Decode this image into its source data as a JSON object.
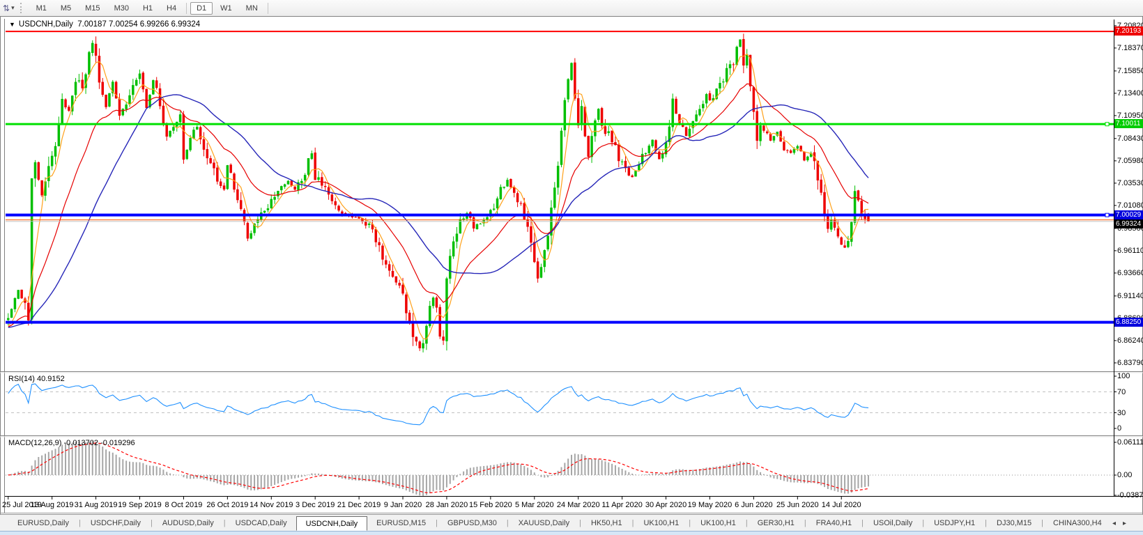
{
  "toolbar": {
    "chart_mode_icon": "⇅",
    "dropdown_icon": "▾",
    "timeframes": [
      "M1",
      "M5",
      "M15",
      "M30",
      "H1",
      "H4",
      "D1",
      "W1",
      "MN"
    ],
    "active": "D1"
  },
  "chart_header": {
    "collapse_icon": "▼",
    "symbol": "USDCNH,Daily",
    "ohlc": "7.00187 7.00254 6.99266 6.99324"
  },
  "price_axis": {
    "labels": [
      "7.20820",
      "7.18370",
      "7.15850",
      "7.13400",
      "7.10950",
      "7.08430",
      "7.05980",
      "7.03530",
      "7.01080",
      "6.98560",
      "6.96110",
      "6.93660",
      "6.91140",
      "6.88690",
      "6.86240",
      "6.83790"
    ],
    "markers": [
      {
        "value": "7.20193",
        "color": "#ee0000"
      },
      {
        "value": "7.10011",
        "color": "#00cc00"
      },
      {
        "value": "7.00029",
        "color": "#0000dd"
      },
      {
        "value": "6.99324",
        "color": "#000000"
      },
      {
        "value": "6.88250",
        "color": "#0000dd"
      }
    ]
  },
  "rsi_pane": {
    "label": "RSI(14)",
    "value": "40.9152",
    "axis_labels": [
      "100",
      "70",
      "30",
      "0"
    ],
    "levels": [
      70,
      30
    ],
    "line_color": "#1e90ff",
    "level_color": "#c0c0c0"
  },
  "macd_pane": {
    "label": "MACD(12,26,9)",
    "values": "-0.013702 -0.019296",
    "axis_labels": [
      "0.061119",
      "0.00",
      "-0.03877"
    ],
    "histogram_color": "#a6a6a6",
    "signal_color": "#ff0000"
  },
  "date_axis": {
    "labels": [
      "25 Jul 2019",
      "13 Aug 2019",
      "31 Aug 2019",
      "19 Sep 2019",
      "8 Oct 2019",
      "26 Oct 2019",
      "14 Nov 2019",
      "3 Dec 2019",
      "21 Dec 2019",
      "9 Jan 2020",
      "28 Jan 2020",
      "15 Feb 2020",
      "5 Mar 2020",
      "24 Mar 2020",
      "11 Apr 2020",
      "30 Apr 2020",
      "19 May 2020",
      "6 Jun 2020",
      "25 Jun 2020",
      "14 Jul 2020"
    ]
  },
  "tabs": {
    "items": [
      "EURUSD,Daily",
      "USDCHF,Daily",
      "AUDUSD,Daily",
      "USDCAD,Daily",
      "USDCNH,Daily",
      "EURUSD,M15",
      "GBPUSD,M30",
      "XAUUSD,Daily",
      "HK50,H1",
      "UK100,H1",
      "UK100,H1",
      "GER30,H1",
      "FRA40,H1",
      "USOil,Daily",
      "USDJPY,H1",
      "DJ30,M15",
      "CHINA300,H4"
    ],
    "active_index": 4,
    "scroll_left_icon": "◂",
    "scroll_right_icon": "▸"
  },
  "chart_data": {
    "type": "candlestick",
    "symbol": "USDCNH",
    "timeframe": "Daily",
    "visible_range": {
      "price_top": 7.2082,
      "price_bottom": 6.8379,
      "date_start": "25 Jul 2019",
      "date_end": "14 Jul 2020"
    },
    "last_candle": {
      "open": 7.00187,
      "high": 7.00254,
      "low": 6.99266,
      "close": 6.99324
    },
    "num_candles": 256,
    "label_every": 13,
    "bull_color": "#00bf00",
    "bear_color": "#ee0000",
    "moving_averages": [
      {
        "period": 5,
        "type": "sma",
        "color": "#ffa11a"
      },
      {
        "period": 20,
        "type": "ema",
        "color": "#e60000"
      },
      {
        "period": 35,
        "type": "sma",
        "color": "#2626b8"
      }
    ],
    "hlines": [
      {
        "price": 7.20193,
        "color": "#ff0000",
        "width": 2,
        "handle": false
      },
      {
        "price": 7.10011,
        "color": "#00e000",
        "width": 3,
        "handle": true
      },
      {
        "price": 7.00029,
        "color": "#0000ff",
        "width": 4,
        "handle": true
      },
      {
        "price": 6.995,
        "color": "#ff5500",
        "width": 1,
        "handle": false
      },
      {
        "price": 6.99324,
        "color": "#c0c0c0",
        "width": 1,
        "handle": false
      },
      {
        "price": 6.8825,
        "color": "#0000ff",
        "width": 4,
        "handle": false
      }
    ],
    "rsi_period": 14,
    "rsi_last": 40.9152,
    "macd_params": [
      12,
      26,
      9
    ],
    "macd_last": [
      -0.013702,
      -0.019296
    ],
    "anchors": [
      [
        0,
        6.885
      ],
      [
        3,
        6.917
      ],
      [
        5,
        6.897
      ],
      [
        6,
        6.89
      ],
      [
        7,
        7.04
      ],
      [
        8,
        7.056
      ],
      [
        10,
        7.022
      ],
      [
        12,
        7.058
      ],
      [
        14,
        7.075
      ],
      [
        15,
        7.095
      ],
      [
        16,
        7.128
      ],
      [
        18,
        7.112
      ],
      [
        20,
        7.148
      ],
      [
        22,
        7.138
      ],
      [
        24,
        7.183
      ],
      [
        25,
        7.191
      ],
      [
        27,
        7.148
      ],
      [
        29,
        7.12
      ],
      [
        31,
        7.145
      ],
      [
        33,
        7.11
      ],
      [
        35,
        7.124
      ],
      [
        37,
        7.14
      ],
      [
        39,
        7.154
      ],
      [
        41,
        7.118
      ],
      [
        43,
        7.147
      ],
      [
        45,
        7.124
      ],
      [
        47,
        7.086
      ],
      [
        49,
        7.1
      ],
      [
        51,
        7.11
      ],
      [
        52,
        7.062
      ],
      [
        54,
        7.088
      ],
      [
        56,
        7.097
      ],
      [
        58,
        7.072
      ],
      [
        60,
        7.056
      ],
      [
        62,
        7.038
      ],
      [
        64,
        7.028
      ],
      [
        65,
        7.056
      ],
      [
        67,
        7.034
      ],
      [
        69,
        7.005
      ],
      [
        71,
        6.974
      ],
      [
        73,
        6.99
      ],
      [
        75,
        7.002
      ],
      [
        77,
        7.008
      ],
      [
        79,
        7.02
      ],
      [
        81,
        7.033
      ],
      [
        83,
        7.036
      ],
      [
        85,
        7.028
      ],
      [
        87,
        7.038
      ],
      [
        89,
        7.062
      ],
      [
        90,
        7.068
      ],
      [
        91,
        7.042
      ],
      [
        93,
        7.032
      ],
      [
        95,
        7.022
      ],
      [
        97,
        7.008
      ],
      [
        99,
        7.002
      ],
      [
        101,
        6.999
      ],
      [
        103,
        6.998
      ],
      [
        105,
        6.994
      ],
      [
        107,
        6.988
      ],
      [
        109,
        6.972
      ],
      [
        111,
        6.956
      ],
      [
        113,
        6.942
      ],
      [
        115,
        6.928
      ],
      [
        117,
        6.916
      ],
      [
        119,
        6.882
      ],
      [
        121,
        6.858
      ],
      [
        122,
        6.852
      ],
      [
        123,
        6.862
      ],
      [
        124,
        6.88
      ],
      [
        125,
        6.9
      ],
      [
        126,
        6.912
      ],
      [
        127,
        6.894
      ],
      [
        128,
        6.87
      ],
      [
        129,
        6.862
      ],
      [
        130,
        6.928
      ],
      [
        131,
        6.96
      ],
      [
        132,
        6.978
      ],
      [
        134,
        6.992
      ],
      [
        136,
        7.003
      ],
      [
        138,
        6.988
      ],
      [
        140,
        6.992
      ],
      [
        142,
        6.998
      ],
      [
        144,
        7.008
      ],
      [
        146,
        7.028
      ],
      [
        148,
        7.038
      ],
      [
        150,
        7.022
      ],
      [
        152,
        7.01
      ],
      [
        154,
        6.994
      ],
      [
        155,
        6.976
      ],
      [
        156,
        6.954
      ],
      [
        157,
        6.928
      ],
      [
        158,
        6.94
      ],
      [
        159,
        6.958
      ],
      [
        160,
        6.98
      ],
      [
        161,
        7.005
      ],
      [
        162,
        7.03
      ],
      [
        163,
        7.06
      ],
      [
        164,
        7.09
      ],
      [
        165,
        7.12
      ],
      [
        166,
        7.15
      ],
      [
        167,
        7.165
      ],
      [
        168,
        7.128
      ],
      [
        169,
        7.096
      ],
      [
        170,
        7.114
      ],
      [
        171,
        7.086
      ],
      [
        172,
        7.066
      ],
      [
        173,
        7.09
      ],
      [
        174,
        7.104
      ],
      [
        175,
        7.117
      ],
      [
        176,
        7.098
      ],
      [
        177,
        7.086
      ],
      [
        178,
        7.092
      ],
      [
        179,
        7.08
      ],
      [
        181,
        7.062
      ],
      [
        183,
        7.048
      ],
      [
        185,
        7.04
      ],
      [
        187,
        7.058
      ],
      [
        189,
        7.072
      ],
      [
        191,
        7.084
      ],
      [
        193,
        7.062
      ],
      [
        195,
        7.08
      ],
      [
        197,
        7.124
      ],
      [
        199,
        7.102
      ],
      [
        201,
        7.088
      ],
      [
        203,
        7.102
      ],
      [
        205,
        7.112
      ],
      [
        207,
        7.13
      ],
      [
        209,
        7.127
      ],
      [
        211,
        7.144
      ],
      [
        213,
        7.157
      ],
      [
        215,
        7.17
      ],
      [
        216,
        7.184
      ],
      [
        217,
        7.192
      ],
      [
        218,
        7.158
      ],
      [
        219,
        7.171
      ],
      [
        220,
        7.145
      ],
      [
        221,
        7.112
      ],
      [
        222,
        7.088
      ],
      [
        223,
        7.102
      ],
      [
        224,
        7.092
      ],
      [
        226,
        7.082
      ],
      [
        228,
        7.091
      ],
      [
        230,
        7.075
      ],
      [
        232,
        7.068
      ],
      [
        234,
        7.077
      ],
      [
        236,
        7.062
      ],
      [
        238,
        7.071
      ],
      [
        240,
        7.042
      ],
      [
        242,
        7.002
      ],
      [
        243,
        6.988
      ],
      [
        244,
        6.997
      ],
      [
        245,
        6.985
      ],
      [
        246,
        6.974
      ],
      [
        247,
        6.968
      ],
      [
        248,
        6.961
      ],
      [
        249,
        6.978
      ],
      [
        250,
        6.996
      ],
      [
        251,
        7.027
      ],
      [
        252,
        7.016
      ],
      [
        253,
        7.002
      ],
      [
        254,
        6.997
      ],
      [
        255,
        6.99324
      ]
    ]
  }
}
